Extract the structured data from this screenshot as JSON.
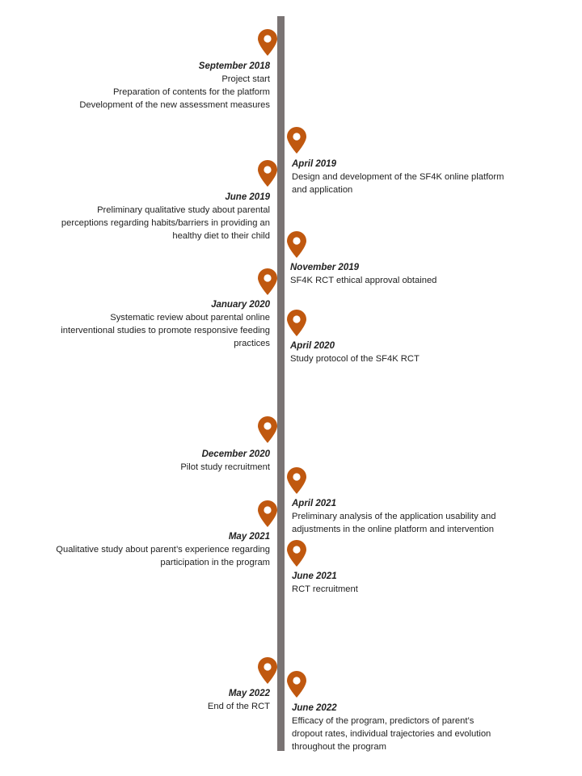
{
  "colors": {
    "axis": "#7a7474",
    "pin": "#c0580f"
  },
  "events": [
    {
      "date": "September 2018",
      "lines": [
        "Project start",
        "Preparation of contents for the platform",
        "Development of the new assessment measures"
      ]
    },
    {
      "date": "April 2019",
      "lines": [
        "Design and development of the SF4K online platform",
        "and application"
      ]
    },
    {
      "date": "June 2019",
      "lines": [
        "Preliminary qualitative study about parental",
        "perceptions regarding habits/barriers in providing an",
        "healthy diet to their child"
      ]
    },
    {
      "date": "November 2019",
      "lines": [
        "SF4K RCT ethical approval obtained"
      ]
    },
    {
      "date": "January 2020",
      "lines": [
        "Systematic review about parental online",
        "interventional studies to promote responsive feeding",
        "practices"
      ]
    },
    {
      "date": "April 2020",
      "lines": [
        "Study protocol of the SF4K RCT"
      ]
    },
    {
      "date": "December 2020",
      "lines": [
        "Pilot study recruitment"
      ]
    },
    {
      "date": "April 2021",
      "lines": [
        "Preliminary analysis of the application usability and",
        "adjustments in the online platform and intervention"
      ]
    },
    {
      "date": "May 2021",
      "lines": [
        "Qualitative study about parent’s experience regarding",
        "participation in the program"
      ]
    },
    {
      "date": "June 2021",
      "lines": [
        "RCT recruitment"
      ]
    },
    {
      "date": "May 2022",
      "lines": [
        "End of the RCT"
      ]
    },
    {
      "date": "June 2022",
      "lines": [
        "Efficacy of the program, predictors of parent’s",
        "dropout rates, individual trajectories and evolution",
        "throughout the program"
      ]
    }
  ]
}
